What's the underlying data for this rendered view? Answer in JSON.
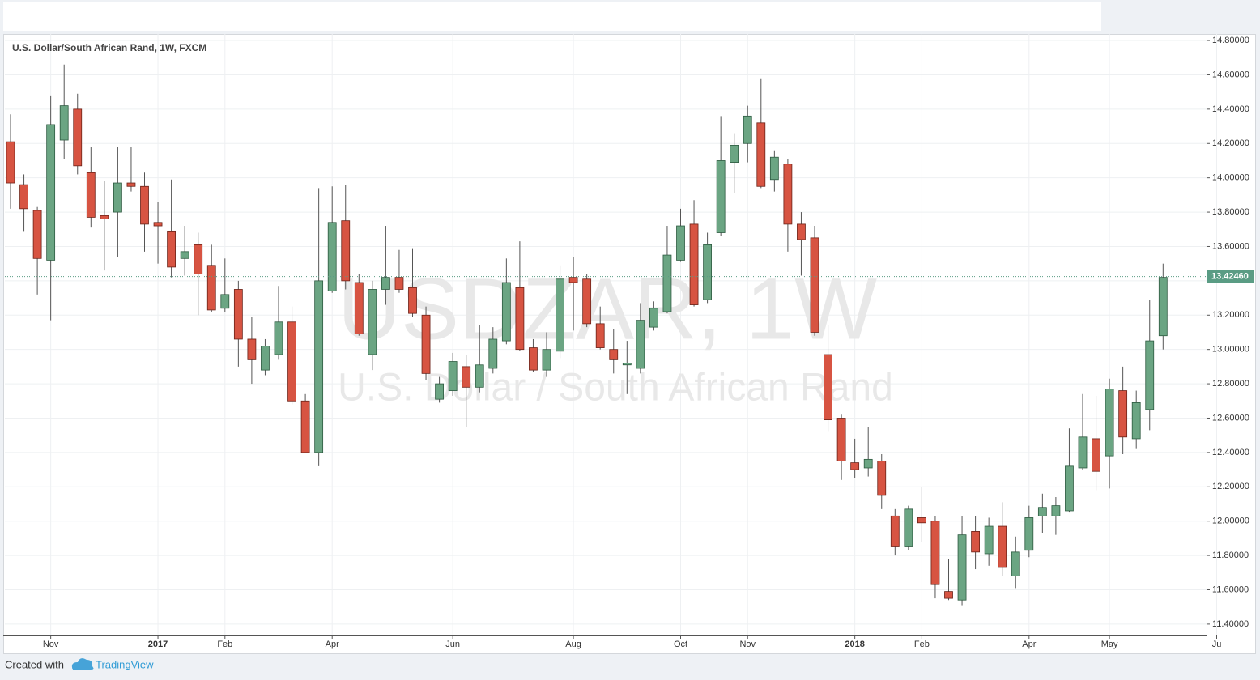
{
  "chart_data": {
    "type": "candlestick",
    "title": "U.S. Dollar/South African Rand, 1W, FXCM",
    "watermark": "USDZAR, 1W",
    "watermark_subtitle": "U.S. Dollar / South African Rand",
    "categories": [
      null,
      null,
      null,
      "Nov",
      null,
      null,
      null,
      null,
      null,
      null,
      null,
      "2017",
      null,
      null,
      null,
      null,
      "Feb",
      null,
      null,
      null,
      null,
      null,
      null,
      null,
      "Apr",
      null,
      null,
      null,
      null,
      null,
      null,
      null,
      null,
      "Jun",
      null,
      null,
      null,
      null,
      null,
      null,
      null,
      null,
      "Aug",
      null,
      null,
      null,
      null,
      null,
      null,
      null,
      "Oct",
      null,
      null,
      null,
      null,
      "Nov",
      null,
      null,
      null,
      null,
      null,
      null,
      null,
      "2018",
      null,
      null,
      null,
      null,
      "Feb",
      null,
      null,
      null,
      null,
      null,
      null,
      null,
      "Apr",
      null,
      null,
      null,
      null,
      null,
      "May",
      null,
      null,
      null,
      null,
      null,
      null,
      null,
      "Ju"
    ],
    "open": [
      14.21,
      13.96,
      13.81,
      13.52,
      14.22,
      14.4,
      14.03,
      13.78,
      13.8,
      13.97,
      13.95,
      13.74,
      13.69,
      13.53,
      13.61,
      13.49,
      13.24,
      13.35,
      13.06,
      12.88,
      12.97,
      13.16,
      12.7,
      12.4,
      13.34,
      13.75,
      13.39,
      12.97,
      13.35,
      13.42,
      13.36,
      13.2,
      12.71,
      12.76,
      12.9,
      12.78,
      12.89,
      13.05,
      13.36,
      13.01,
      12.88,
      12.99,
      13.42,
      13.41,
      13.15,
      13.0,
      12.91,
      12.89,
      13.13,
      13.22,
      13.52,
      13.73,
      13.29,
      13.68,
      14.09,
      14.2,
      14.32,
      13.99,
      14.08,
      13.73,
      13.65,
      12.97,
      12.6,
      12.34,
      12.31,
      12.35,
      12.03,
      11.85,
      12.02,
      12.0,
      11.59,
      11.54,
      11.94,
      11.81,
      11.97,
      11.68,
      11.83,
      12.03,
      12.03,
      12.06,
      12.31,
      12.48,
      12.38,
      12.76,
      12.48,
      12.65,
      13.08,
      null,
      null,
      null,
      null
    ],
    "high": [
      14.37,
      14.02,
      13.83,
      14.48,
      14.66,
      14.49,
      14.18,
      13.98,
      14.18,
      14.18,
      14.03,
      13.86,
      13.99,
      13.72,
      13.68,
      13.61,
      13.53,
      13.4,
      13.19,
      13.06,
      13.37,
      13.25,
      12.74,
      13.94,
      13.95,
      13.96,
      13.44,
      13.4,
      13.72,
      13.58,
      13.59,
      13.25,
      12.84,
      12.98,
      12.97,
      13.14,
      13.13,
      13.53,
      13.63,
      13.06,
      13.1,
      13.49,
      13.54,
      13.44,
      13.25,
      13.12,
      13.05,
      13.27,
      13.28,
      13.72,
      13.82,
      13.87,
      13.68,
      14.36,
      14.26,
      14.42,
      14.58,
      14.16,
      14.11,
      13.8,
      13.72,
      13.14,
      12.62,
      12.48,
      12.55,
      12.39,
      12.07,
      12.09,
      12.2,
      12.03,
      11.78,
      12.03,
      12.03,
      12.02,
      12.11,
      11.91,
      12.09,
      12.16,
      12.14,
      12.54,
      12.74,
      12.73,
      12.83,
      12.9,
      12.76,
      13.29,
      13.5,
      null,
      null,
      null,
      null
    ],
    "low": [
      13.82,
      13.69,
      13.32,
      13.17,
      14.11,
      14.02,
      13.71,
      13.46,
      13.54,
      13.92,
      13.57,
      13.5,
      13.42,
      13.43,
      13.2,
      13.22,
      13.22,
      12.9,
      12.8,
      12.85,
      12.94,
      12.68,
      12.4,
      12.32,
      13.33,
      13.35,
      13.08,
      12.88,
      13.26,
      13.33,
      13.19,
      12.82,
      12.69,
      12.73,
      12.55,
      12.75,
      12.86,
      13.03,
      12.99,
      12.87,
      12.84,
      12.95,
      13.11,
      13.13,
      13.0,
      12.86,
      12.74,
      12.86,
      13.11,
      13.21,
      13.51,
      13.25,
      13.27,
      13.66,
      13.91,
      14.09,
      13.94,
      13.92,
      13.57,
      13.43,
      13.08,
      12.52,
      12.24,
      12.25,
      12.26,
      12.07,
      11.8,
      11.83,
      11.88,
      11.55,
      11.54,
      11.51,
      11.72,
      11.74,
      11.68,
      11.61,
      11.79,
      11.93,
      11.92,
      12.05,
      12.3,
      12.18,
      12.19,
      12.39,
      12.42,
      12.53,
      13.0,
      null,
      null,
      null,
      null
    ],
    "close": [
      13.97,
      13.82,
      13.53,
      14.31,
      14.42,
      14.07,
      13.77,
      13.76,
      13.97,
      13.95,
      13.73,
      13.72,
      13.48,
      13.57,
      13.44,
      13.23,
      13.32,
      13.06,
      12.94,
      13.02,
      13.16,
      12.7,
      12.4,
      13.4,
      13.74,
      13.4,
      13.09,
      13.35,
      13.42,
      13.35,
      13.21,
      12.86,
      12.8,
      12.93,
      12.78,
      12.91,
      13.06,
      13.39,
      13.0,
      12.88,
      13.0,
      13.41,
      13.39,
      13.15,
      13.01,
      12.94,
      12.92,
      13.17,
      13.24,
      13.55,
      13.72,
      13.26,
      13.61,
      14.1,
      14.19,
      14.36,
      13.95,
      14.12,
      13.73,
      13.64,
      13.1,
      12.59,
      12.35,
      12.3,
      12.36,
      12.15,
      11.85,
      12.07,
      11.99,
      11.63,
      11.55,
      11.92,
      11.82,
      11.97,
      11.73,
      11.82,
      12.02,
      12.08,
      12.09,
      12.32,
      12.49,
      12.29,
      12.77,
      12.49,
      12.69,
      13.05,
      13.42,
      null,
      null,
      null,
      null
    ],
    "up_color": "#6ba583",
    "down_color": "#d75442",
    "ylim": [
      11.225,
      14.838
    ],
    "yticks": [
      {
        "value": 11.4,
        "label": "11.40000"
      },
      {
        "value": 11.6,
        "label": "11.60000"
      },
      {
        "value": 11.8,
        "label": "11.80000"
      },
      {
        "value": 12.0,
        "label": "12.00000"
      },
      {
        "value": 12.2,
        "label": "12.20000"
      },
      {
        "value": 12.4,
        "label": "12.40000"
      },
      {
        "value": 12.6,
        "label": "12.60000"
      },
      {
        "value": 12.8,
        "label": "12.80000"
      },
      {
        "value": 13.0,
        "label": "13.00000"
      },
      {
        "value": 13.2,
        "label": "13.20000"
      },
      {
        "value": 13.4,
        "label": "13.40000"
      },
      {
        "value": 13.6,
        "label": "13.60000"
      },
      {
        "value": 13.8,
        "label": "13.80000"
      },
      {
        "value": 14.0,
        "label": "14.00000"
      },
      {
        "value": 14.2,
        "label": "14.20000"
      },
      {
        "value": 14.4,
        "label": "14.40000"
      },
      {
        "value": 14.6,
        "label": "14.60000"
      },
      {
        "value": 14.8,
        "label": "14.80000"
      }
    ],
    "last_price": {
      "value": 13.4246,
      "label": "13.42460"
    },
    "last_price_color": "#5a9c84",
    "grid": true
  },
  "footer": {
    "prefix": "Created with",
    "brand": "TradingView"
  }
}
